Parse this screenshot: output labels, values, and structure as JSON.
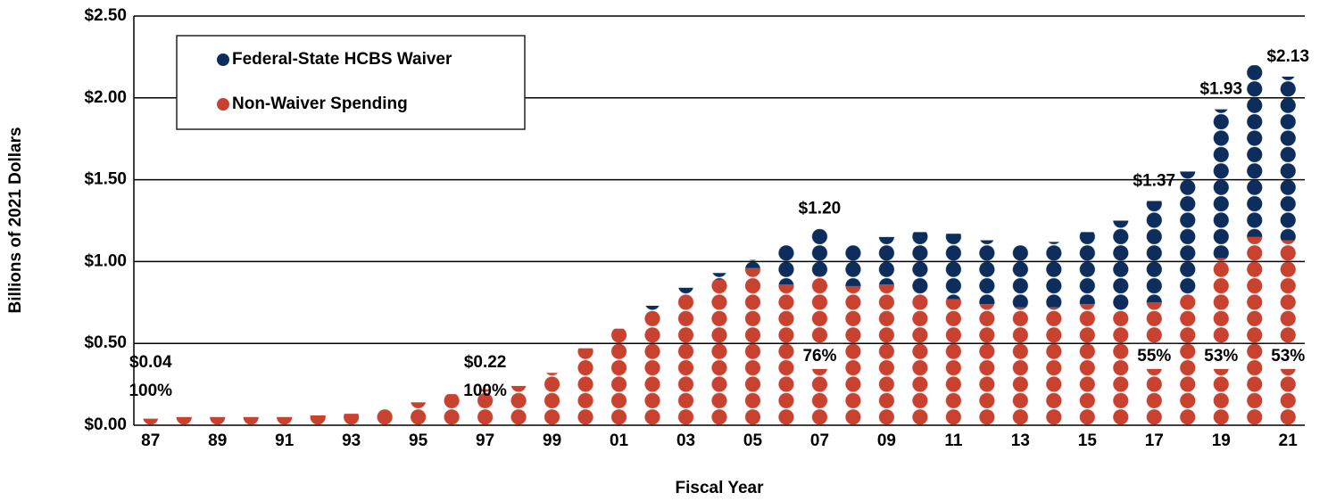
{
  "chart_data": {
    "type": "dot-stacked-bar",
    "xlabel": "Fiscal Year",
    "ylabel": "Billions of 2021 Dollars",
    "categories": [
      "87",
      null,
      "89",
      null,
      "91",
      null,
      "93",
      null,
      "95",
      null,
      "97",
      null,
      "99",
      null,
      "01",
      null,
      "03",
      null,
      "05",
      null,
      "07",
      null,
      "09",
      null,
      "11",
      null,
      "13",
      null,
      "15",
      null,
      "17",
      null,
      "19",
      null,
      "21"
    ],
    "series": [
      {
        "name": "Non-Waiver Spending",
        "color": "#c9412f",
        "values": [
          0.04,
          0.05,
          0.05,
          0.05,
          0.05,
          0.06,
          0.07,
          0.1,
          0.14,
          0.19,
          0.22,
          0.24,
          0.32,
          0.47,
          0.59,
          0.7,
          0.8,
          0.89,
          0.96,
          0.86,
          0.91,
          0.85,
          0.86,
          0.8,
          0.77,
          0.74,
          0.72,
          0.72,
          0.74,
          0.7,
          0.75,
          0.8,
          1.02,
          1.15,
          1.13
        ]
      },
      {
        "name": "Federal-State HCBS Waiver",
        "color": "#0d2e5c",
        "values": [
          0,
          0,
          0,
          0,
          0,
          0,
          0,
          0,
          0,
          0,
          0,
          0,
          0,
          0,
          0,
          0.03,
          0.04,
          0.04,
          0.05,
          0.24,
          0.29,
          0.25,
          0.29,
          0.38,
          0.4,
          0.39,
          0.38,
          0.4,
          0.44,
          0.55,
          0.62,
          0.75,
          0.91,
          1.05,
          1.0
        ]
      }
    ],
    "annotations": [
      {
        "x": "87",
        "total": "$0.04",
        "share": "100%"
      },
      {
        "x": "97",
        "total": "$0.22",
        "share": "100%"
      },
      {
        "x": "07",
        "total": "$1.20",
        "share": "76%"
      },
      {
        "x": "17",
        "total": "$1.37",
        "share": "55%"
      },
      {
        "x": "19",
        "total": "$1.93",
        "share": "53%"
      },
      {
        "x": "21",
        "total": "$2.13",
        "share": "53%"
      }
    ],
    "ylim": [
      0,
      2.5
    ],
    "yticks": [
      {
        "value": 0,
        "label": "$0.00"
      },
      {
        "value": 0.5,
        "label": "$0.50"
      },
      {
        "value": 1,
        "label": "$1.00"
      },
      {
        "value": 1.5,
        "label": "$1.50"
      },
      {
        "value": 2,
        "label": "$2.00"
      },
      {
        "value": 2.5,
        "label": "$2.50"
      }
    ],
    "grid": true,
    "legend": "upper left"
  }
}
